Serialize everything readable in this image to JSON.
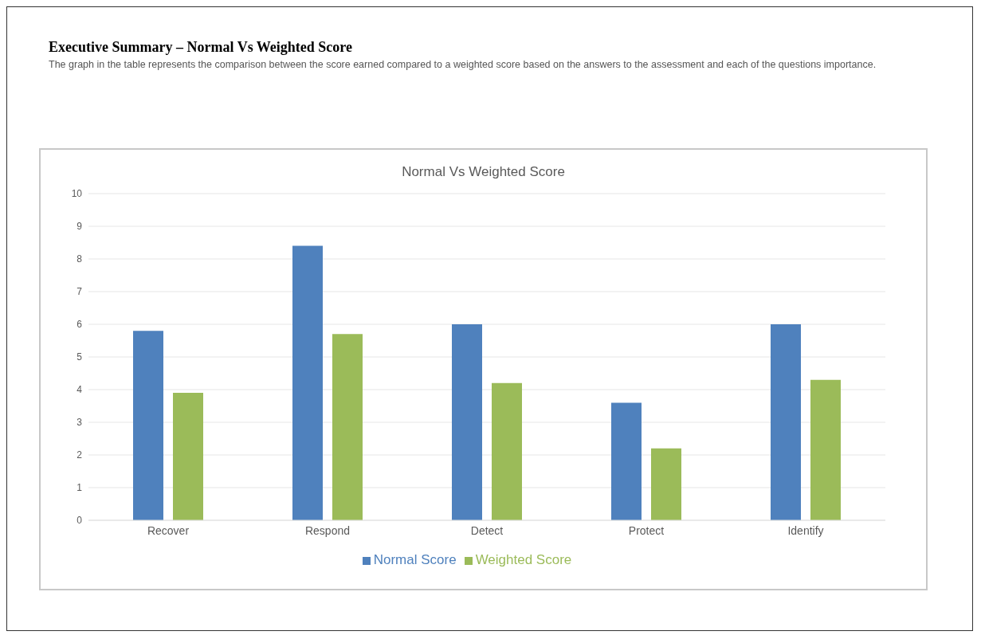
{
  "chart_data": {
    "type": "bar",
    "title": "Executive Summary – Normal Vs Weighted Score",
    "subtitle": "The graph in the table represents the comparison between the score earned compared to a weighted score based on the answers to the assessment and each of the questions importance.",
    "annotations": [
      "Normal Vs Weighted Score"
    ],
    "categories": [
      "Recover",
      "Respond",
      "Detect",
      "Protect",
      "Identify"
    ],
    "series": [
      {
        "name": "Normal Score",
        "color": "#4f81bd",
        "values": [
          5.8,
          8.4,
          6.0,
          3.6,
          6.0
        ]
      },
      {
        "name": "Weighted Score",
        "color": "#9bbb59",
        "values": [
          3.9,
          5.7,
          4.2,
          2.2,
          4.3
        ]
      }
    ],
    "ylim": [
      0,
      10
    ],
    "yticks": [
      0,
      1,
      2,
      3,
      4,
      5,
      6,
      7,
      8,
      9,
      10
    ],
    "grid": "y",
    "legend": "bottom"
  }
}
